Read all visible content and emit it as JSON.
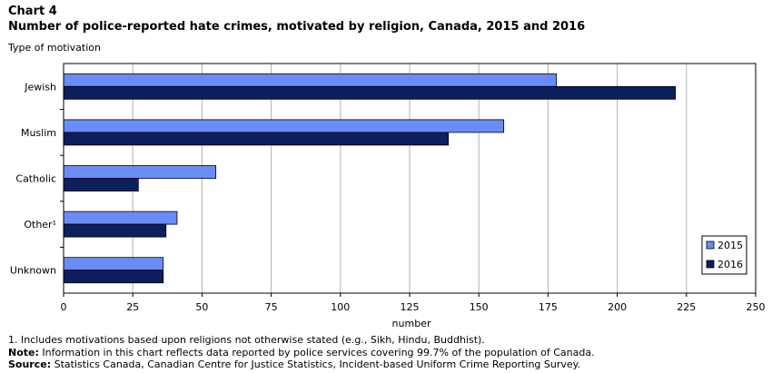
{
  "header": {
    "chart_number": "Chart 4",
    "title": "Number of police-reported hate crimes, motivated by religion, Canada, 2015 and 2016"
  },
  "chart_data": {
    "type": "bar",
    "orientation": "horizontal",
    "title": "Number of police-reported hate crimes, motivated by religion, Canada, 2015 and 2016",
    "ylabel": "Type of motivation",
    "xlabel": "number",
    "categories": [
      "Jewish",
      "Muslim",
      "Catholic",
      "Other¹",
      "Unknown"
    ],
    "series": [
      {
        "name": "2015",
        "color": "#6a8cf7",
        "values": [
          178,
          159,
          55,
          41,
          36
        ]
      },
      {
        "name": "2016",
        "color": "#0d1f5c",
        "values": [
          221,
          139,
          27,
          37,
          36
        ]
      }
    ],
    "xlim": [
      0,
      250
    ],
    "xticks": [
      0,
      25,
      50,
      75,
      100,
      125,
      150,
      175,
      200,
      225,
      250
    ],
    "grid": true,
    "legend": "bottom-right"
  },
  "footnotes": {
    "note1": "1. Includes motivations based upon religions not otherwise stated (e.g., Sikh, Hindu, Buddhist).",
    "note_label": "Note:",
    "note_text": " Information in this chart reflects data reported by police services covering 99.7% of the population of Canada.",
    "source_label": "Source:",
    "source_text": " Statistics Canada, Canadian Centre for Justice Statistics, Incident-based Uniform Crime Reporting Survey."
  }
}
